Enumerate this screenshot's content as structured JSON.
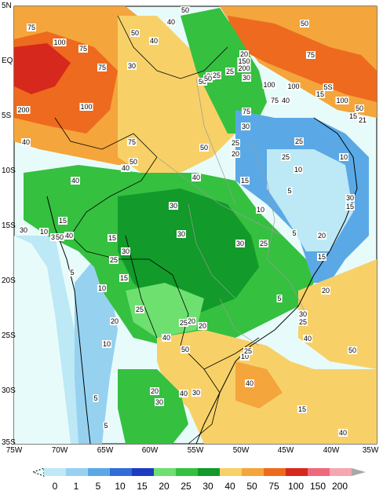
{
  "map": {
    "lat_ticks": [
      "5N",
      "EQ",
      "5S",
      "10S",
      "15S",
      "20S",
      "25S",
      "30S",
      "35S"
    ],
    "lon_ticks": [
      "75W",
      "70W",
      "65W",
      "60W",
      "55W",
      "50W",
      "45W",
      "40W",
      "35W"
    ],
    "contour_labels": [
      "75",
      "50",
      "100",
      "75",
      "50",
      "40",
      "50",
      "30",
      "40",
      "75",
      "100",
      "75",
      "100",
      "20",
      "150",
      "200",
      "30",
      "25",
      "20",
      "50",
      "50",
      "25",
      "100",
      "75",
      "40",
      "15",
      "100",
      "50",
      "200",
      "5S",
      "75",
      "50",
      "30",
      "25",
      "40",
      "15",
      "21",
      "75",
      "25",
      "20",
      "15",
      "25",
      "10",
      "10",
      "5",
      "30",
      "40",
      "50",
      "40",
      "40",
      "15",
      "30",
      "10",
      "5",
      "15",
      "30",
      "10",
      "40",
      "30",
      "5",
      "15",
      "25",
      "30",
      "15",
      "10",
      "50",
      "30",
      "30",
      "25",
      "15",
      "20",
      "20",
      "5",
      "20",
      "25",
      "10",
      "20",
      "20",
      "25",
      "30",
      "10",
      "25",
      "30",
      "40",
      "50",
      "40",
      "50",
      "20",
      "40",
      "15",
      "30",
      "25",
      "5",
      "40",
      "5",
      "40"
    ],
    "color_scale": {
      "thresholds": [
        "0",
        "1",
        "5",
        "10",
        "15",
        "20",
        "25",
        "30",
        "40",
        "50",
        "75",
        "100",
        "150",
        "200"
      ],
      "colors": [
        "#e8fbfb",
        "#bde8f5",
        "#96d2f0",
        "#5aa9e6",
        "#2f6ed6",
        "#1e3cc0",
        "#6ee070",
        "#35c040",
        "#129a2a",
        "#f7d168",
        "#f4a53c",
        "#ee6a1e",
        "#d6281c",
        "#f0687c",
        "#f6a6b0",
        "#a8a8a8"
      ]
    }
  }
}
